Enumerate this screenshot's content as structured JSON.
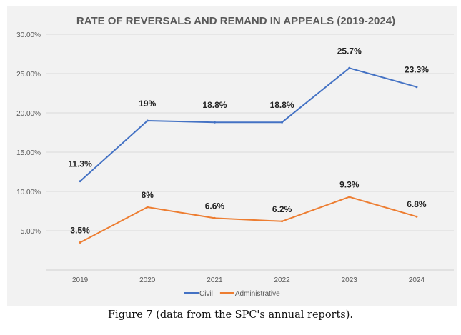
{
  "chart_data": {
    "type": "line",
    "title": "RATE OF REVERSALS AND REMAND IN APPEALS (2019-2024)",
    "categories": [
      "2019",
      "2020",
      "2021",
      "2022",
      "2023",
      "2024"
    ],
    "yticks": [
      "30.00%",
      "25.00%",
      "20.00%",
      "15.00%",
      "10.00%",
      "5.00%"
    ],
    "ytick_values": [
      30,
      25,
      20,
      15,
      10,
      5
    ],
    "ylim": [
      0,
      30
    ],
    "grid": true,
    "legend_position": "bottom",
    "series": [
      {
        "name": "Civil",
        "color": "#4472c4",
        "values": [
          11.3,
          19,
          18.8,
          18.8,
          25.7,
          23.3
        ],
        "labels": [
          "11.3%",
          "19%",
          "18.8%",
          "18.8%",
          "25.7%",
          "23.3%"
        ]
      },
      {
        "name": "Administrative",
        "color": "#ed7d31",
        "values": [
          3.5,
          8,
          6.6,
          6.2,
          9.3,
          6.8
        ],
        "labels": [
          "3.5%",
          "8%",
          "6.6%",
          "6.2%",
          "9.3%",
          "6.8%"
        ]
      }
    ]
  },
  "caption": "Figure 7 (data from the SPC's annual reports)."
}
